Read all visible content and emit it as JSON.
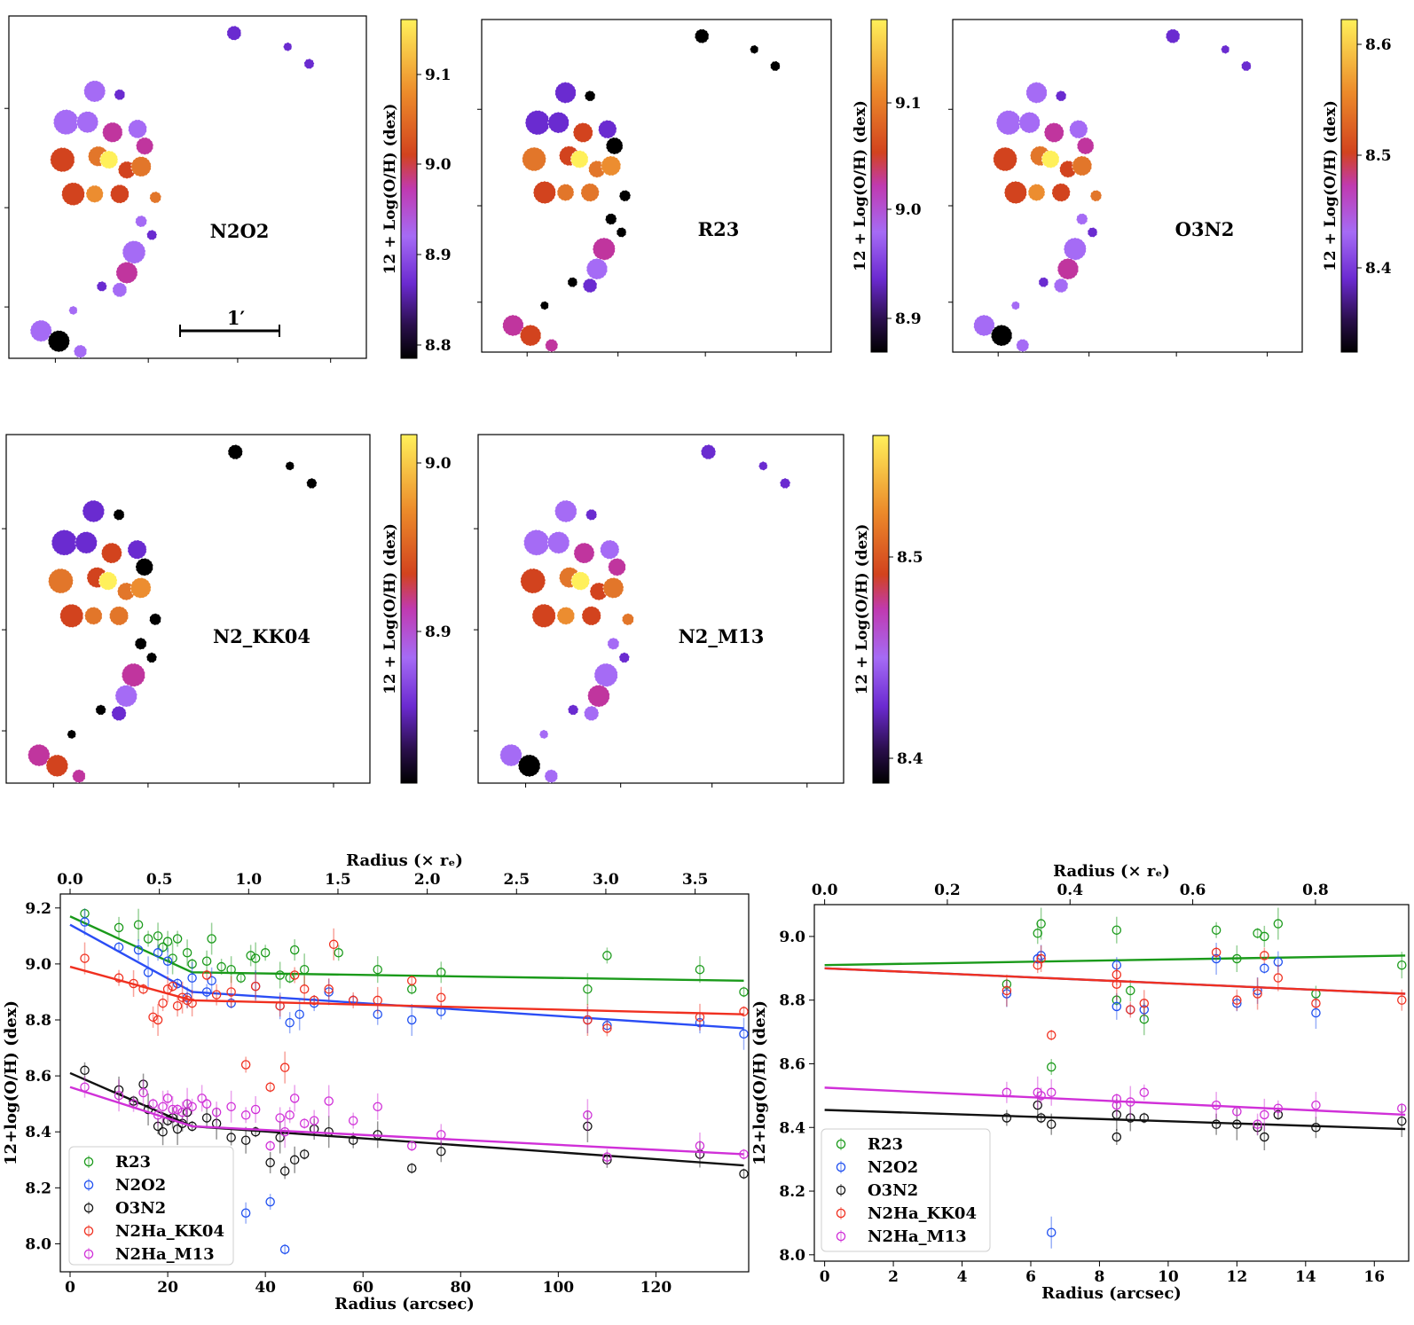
{
  "maps": {
    "cbar_label": "12 + Log(O/H) (dex)",
    "scale_bar_label": "1′",
    "panels": [
      {
        "label": "N2O2",
        "ticks": [
          "9.1",
          "9.0",
          "8.9",
          "8.8"
        ]
      },
      {
        "label": "R23",
        "ticks": [
          "9.1",
          "9.0",
          "8.9"
        ]
      },
      {
        "label": "O3N2",
        "ticks": [
          "8.6",
          "8.5",
          "8.4"
        ]
      },
      {
        "label": "N2_KK04",
        "ticks": [
          "9.0",
          "8.9"
        ]
      },
      {
        "label": "N2_M13",
        "ticks": [
          "8.5",
          "8.4"
        ]
      }
    ]
  },
  "colors": {
    "R23": "#1a9a1a",
    "N2O2": "#1f4ff0",
    "O3N2": "#111111",
    "N2Ha_KK04": "#f03020",
    "N2Ha_M13": "#d030d8"
  },
  "chart_data": [
    {
      "type": "scatter",
      "title": "",
      "xlabel": "Radius (arcsec)",
      "xlabel_top": "Radius (× rₑ)",
      "ylabel": "12+log(O/H) (dex)",
      "xlim": [
        -2,
        139
      ],
      "ylim": [
        7.9,
        9.25
      ],
      "top_xlim": [
        -0.0546,
        3.8
      ],
      "xticks": [
        "0",
        "20",
        "40",
        "60",
        "80",
        "100",
        "120"
      ],
      "top_xticks": [
        "0.0",
        "0.5",
        "1.0",
        "1.5",
        "2.0",
        "2.5",
        "3.0",
        "3.5"
      ],
      "yticks": [
        "8.0",
        "8.2",
        "8.4",
        "8.6",
        "8.8",
        "9.0",
        "9.2"
      ],
      "legend_position": "bottom-left",
      "series": [
        {
          "name": "R23",
          "x": [
            3,
            10,
            14,
            16,
            18,
            19,
            20,
            21,
            22,
            24,
            25,
            28,
            29,
            31,
            33,
            35,
            37,
            38,
            40,
            43,
            45,
            46,
            48,
            55,
            63,
            70,
            76,
            106,
            110,
            129,
            138
          ],
          "y": [
            9.18,
            9.13,
            9.14,
            9.09,
            9.1,
            9.06,
            9.08,
            9.02,
            9.09,
            9.04,
            9.0,
            9.01,
            9.09,
            8.99,
            8.98,
            8.95,
            9.03,
            9.02,
            9.04,
            8.96,
            8.95,
            9.05,
            8.98,
            9.04,
            8.98,
            8.91,
            8.97,
            8.91,
            9.03,
            8.98,
            8.9
          ],
          "fit": [
            9.17,
            8.97,
            8.94
          ]
        },
        {
          "name": "N2O2",
          "x": [
            3,
            10,
            14,
            16,
            18,
            20,
            22,
            24,
            25,
            28,
            29,
            33,
            36,
            38,
            41,
            43,
            44,
            45,
            47,
            50,
            53,
            58,
            63,
            70,
            76,
            106,
            110,
            129,
            138
          ],
          "y": [
            9.15,
            9.06,
            9.05,
            8.97,
            9.04,
            9.01,
            8.93,
            8.88,
            8.95,
            8.9,
            8.94,
            8.86,
            8.11,
            8.92,
            8.15,
            8.85,
            7.98,
            8.79,
            8.82,
            8.86,
            8.9,
            8.87,
            8.82,
            8.8,
            8.83,
            8.8,
            8.78,
            8.79,
            8.75
          ],
          "fit": [
            9.14,
            8.9,
            8.77
          ]
        },
        {
          "name": "O3N2",
          "x": [
            3,
            10,
            13,
            15,
            16,
            18,
            19,
            20,
            21,
            22,
            23,
            24,
            25,
            28,
            30,
            33,
            36,
            38,
            41,
            43,
            44,
            46,
            48,
            50,
            53,
            58,
            63,
            70,
            76,
            106,
            110,
            129,
            138
          ],
          "y": [
            8.62,
            8.55,
            8.51,
            8.57,
            8.48,
            8.42,
            8.4,
            8.44,
            8.45,
            8.41,
            8.43,
            8.47,
            8.42,
            8.45,
            8.43,
            8.38,
            8.37,
            8.4,
            8.29,
            8.38,
            8.26,
            8.3,
            8.32,
            8.41,
            8.4,
            8.37,
            8.39,
            8.27,
            8.33,
            8.42,
            8.3,
            8.32,
            8.25
          ],
          "fit": [
            8.61,
            8.42,
            8.28
          ]
        },
        {
          "name": "N2Ha_KK04",
          "x": [
            3,
            10,
            13,
            15,
            17,
            18,
            19,
            20,
            21,
            22,
            23,
            24,
            25,
            28,
            30,
            33,
            36,
            38,
            41,
            43,
            44,
            46,
            48,
            50,
            53,
            54,
            58,
            63,
            70,
            76,
            106,
            110,
            129,
            138
          ],
          "y": [
            9.02,
            8.95,
            8.93,
            8.91,
            8.81,
            8.8,
            8.86,
            8.91,
            8.92,
            8.85,
            8.88,
            8.87,
            8.86,
            8.96,
            8.89,
            8.9,
            8.64,
            8.92,
            8.56,
            8.85,
            8.63,
            8.96,
            8.91,
            8.87,
            8.91,
            9.07,
            8.87,
            8.87,
            8.94,
            8.88,
            8.8,
            8.77,
            8.81,
            8.83
          ],
          "fit": [
            8.99,
            8.87,
            8.82
          ]
        },
        {
          "name": "N2Ha_M13",
          "x": [
            3,
            10,
            13,
            15,
            17,
            18,
            19,
            20,
            21,
            22,
            23,
            24,
            25,
            27,
            28,
            30,
            33,
            36,
            38,
            41,
            43,
            44,
            45,
            46,
            48,
            50,
            53,
            58,
            63,
            70,
            76,
            106,
            110,
            129,
            138
          ],
          "y": [
            8.56,
            8.53,
            8.5,
            8.54,
            8.5,
            8.46,
            8.49,
            8.52,
            8.48,
            8.48,
            8.47,
            8.5,
            8.49,
            8.52,
            8.5,
            8.47,
            8.49,
            8.46,
            8.48,
            8.35,
            8.45,
            8.4,
            8.46,
            8.52,
            8.43,
            8.44,
            8.51,
            8.44,
            8.49,
            8.35,
            8.39,
            8.46,
            8.31,
            8.35,
            8.32
          ],
          "fit": [
            8.56,
            8.42,
            8.32
          ]
        }
      ]
    },
    {
      "type": "scatter",
      "title": "",
      "xlabel": "Radius (arcsec)",
      "xlabel_top": "Radius (× rₑ)",
      "ylabel": "12+log(O/H) (dex)",
      "xlim": [
        -0.3,
        17
      ],
      "ylim": [
        7.98,
        9.1
      ],
      "top_xlim": [
        -0.0168,
        0.952
      ],
      "xticks": [
        "0",
        "2",
        "4",
        "6",
        "8",
        "10",
        "12",
        "14",
        "16"
      ],
      "top_xticks": [
        "0.0",
        "0.2",
        "0.4",
        "0.6",
        "0.8"
      ],
      "yticks": [
        "8.0",
        "8.2",
        "8.4",
        "8.6",
        "8.8",
        "9.0"
      ],
      "legend_position": "bottom-left",
      "series": [
        {
          "name": "R23",
          "x": [
            5.3,
            6.2,
            6.3,
            6.6,
            8.5,
            8.5,
            8.9,
            9.3,
            11.4,
            12.0,
            12.6,
            12.8,
            13.2,
            14.3,
            16.8
          ],
          "y": [
            8.85,
            9.01,
            9.04,
            8.59,
            9.02,
            8.8,
            8.83,
            8.74,
            9.02,
            8.93,
            9.01,
            9.0,
            9.04,
            8.82,
            8.91
          ],
          "fit": [
            8.91,
            8.94
          ]
        },
        {
          "name": "N2O2",
          "x": [
            5.3,
            6.2,
            6.3,
            6.6,
            8.5,
            8.5,
            8.9,
            9.3,
            11.4,
            12.0,
            12.6,
            12.8,
            13.2,
            14.3
          ],
          "y": [
            8.82,
            8.93,
            8.94,
            8.07,
            8.91,
            8.78,
            8.77,
            8.77,
            8.93,
            8.79,
            8.83,
            8.9,
            8.92,
            8.76
          ],
          "fit": [
            8.9,
            8.82
          ]
        },
        {
          "name": "O3N2",
          "x": [
            5.3,
            6.2,
            6.3,
            6.6,
            8.5,
            8.5,
            8.9,
            9.3,
            11.4,
            12.0,
            12.6,
            12.8,
            13.2,
            14.3,
            16.8
          ],
          "y": [
            8.43,
            8.47,
            8.43,
            8.41,
            8.44,
            8.37,
            8.43,
            8.43,
            8.41,
            8.41,
            8.4,
            8.37,
            8.44,
            8.4,
            8.42
          ],
          "fit": [
            8.455,
            8.395
          ]
        },
        {
          "name": "N2Ha_KK04",
          "x": [
            5.3,
            6.2,
            6.3,
            6.6,
            8.5,
            8.5,
            8.9,
            9.3,
            11.4,
            12.0,
            12.6,
            12.8,
            13.2,
            14.3,
            16.8
          ],
          "y": [
            8.83,
            8.91,
            8.93,
            8.69,
            8.88,
            8.85,
            8.77,
            8.79,
            8.95,
            8.8,
            8.82,
            8.94,
            8.87,
            8.79,
            8.8
          ],
          "fit": [
            8.9,
            8.82
          ]
        },
        {
          "name": "N2Ha_M13",
          "x": [
            5.3,
            6.2,
            6.3,
            6.6,
            8.5,
            8.5,
            8.9,
            9.3,
            11.4,
            12.0,
            12.6,
            12.8,
            13.2,
            14.3,
            16.8
          ],
          "y": [
            8.51,
            8.51,
            8.5,
            8.51,
            8.49,
            8.47,
            8.48,
            8.51,
            8.47,
            8.45,
            8.41,
            8.44,
            8.46,
            8.47,
            8.46
          ],
          "fit": [
            8.525,
            8.44
          ]
        }
      ]
    }
  ]
}
